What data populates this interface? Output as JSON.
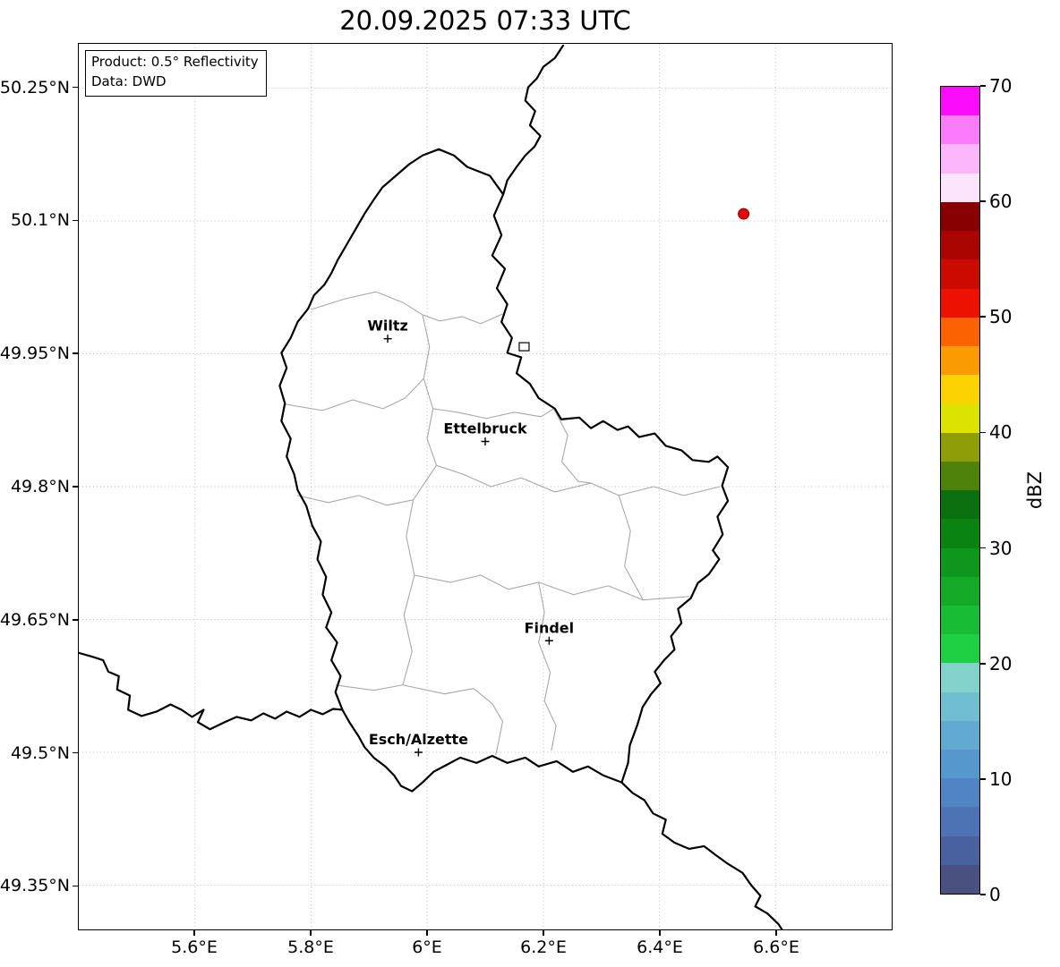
{
  "title": "20.09.2025 07:33 UTC",
  "info_box": {
    "product": "Product: 0.5° Reflectivity",
    "data_source": "Data: DWD"
  },
  "map": {
    "lon_min": 5.4,
    "lon_max": 6.8,
    "lat_min": 49.3,
    "lat_max": 50.3,
    "grid_color": "#bdbdbd",
    "x_ticks": [
      {
        "value": 5.6,
        "label": "5.6°E"
      },
      {
        "value": 5.8,
        "label": "5.8°E"
      },
      {
        "value": 6.0,
        "label": "6°E"
      },
      {
        "value": 6.2,
        "label": "6.2°E"
      },
      {
        "value": 6.4,
        "label": "6.4°E"
      },
      {
        "value": 6.6,
        "label": "6.6°E"
      }
    ],
    "y_ticks": [
      {
        "value": 50.25,
        "label": "50.25°N"
      },
      {
        "value": 50.1,
        "label": "50.1°N"
      },
      {
        "value": 49.95,
        "label": "49.95°N"
      },
      {
        "value": 49.8,
        "label": "49.8°N"
      },
      {
        "value": 49.65,
        "label": "49.65°N"
      },
      {
        "value": 49.5,
        "label": "49.5°N"
      },
      {
        "value": 49.35,
        "label": "49.35°N"
      }
    ],
    "cities": [
      {
        "name": "Wiltz",
        "lon": 5.932,
        "lat": 49.967
      },
      {
        "name": "Ettelbruck",
        "lon": 6.1,
        "lat": 49.851
      },
      {
        "name": "Findel",
        "lon": 6.21,
        "lat": 49.626
      },
      {
        "name": "Esch/Alzette",
        "lon": 5.985,
        "lat": 49.5
      }
    ],
    "echo_marker": {
      "lon": 6.545,
      "lat": 50.108,
      "color": "#e8000b",
      "edge_color": "#8b0000"
    },
    "reservoir_marker": {
      "lon": 6.167,
      "lat": 49.958
    },
    "borders": {
      "country_color": "#000000",
      "internal_color": "#a8a8a8",
      "country": [
        [
          [
            6.02,
            50.181
          ],
          [
            6.046,
            50.174
          ],
          [
            6.069,
            50.161
          ],
          [
            6.108,
            50.151
          ],
          [
            6.131,
            50.13
          ],
          [
            6.115,
            50.106
          ],
          [
            6.128,
            50.084
          ],
          [
            6.112,
            50.061
          ],
          [
            6.134,
            50.046
          ],
          [
            6.12,
            50.024
          ],
          [
            6.138,
            50.006
          ],
          [
            6.128,
            49.986
          ],
          [
            6.146,
            49.968
          ],
          [
            6.138,
            49.951
          ],
          [
            6.162,
            49.946
          ],
          [
            6.154,
            49.928
          ],
          [
            6.177,
            49.916
          ],
          [
            6.192,
            49.9
          ],
          [
            6.22,
            49.888
          ],
          [
            6.231,
            49.876
          ],
          [
            6.262,
            49.878
          ],
          [
            6.282,
            49.866
          ],
          [
            6.303,
            49.874
          ],
          [
            6.328,
            49.864
          ],
          [
            6.346,
            49.868
          ],
          [
            6.365,
            49.856
          ],
          [
            6.392,
            49.86
          ],
          [
            6.411,
            49.846
          ],
          [
            6.438,
            49.841
          ],
          [
            6.457,
            49.83
          ],
          [
            6.485,
            49.828
          ],
          [
            6.5,
            49.834
          ],
          [
            6.518,
            49.822
          ],
          [
            6.508,
            49.801
          ],
          [
            6.518,
            49.784
          ],
          [
            6.5,
            49.766
          ],
          [
            6.509,
            49.746
          ],
          [
            6.492,
            49.728
          ],
          [
            6.503,
            49.718
          ],
          [
            6.485,
            49.701
          ],
          [
            6.466,
            49.691
          ],
          [
            6.454,
            49.674
          ],
          [
            6.432,
            49.662
          ],
          [
            6.438,
            49.646
          ],
          [
            6.42,
            49.631
          ],
          [
            6.426,
            49.616
          ],
          [
            6.408,
            49.604
          ],
          [
            6.392,
            49.591
          ],
          [
            6.402,
            49.578
          ],
          [
            6.386,
            49.566
          ],
          [
            6.371,
            49.551
          ],
          [
            6.362,
            49.531
          ],
          [
            6.349,
            49.508
          ],
          [
            6.346,
            49.488
          ],
          [
            6.335,
            49.466
          ],
          [
            6.303,
            49.474
          ],
          [
            6.277,
            49.484
          ],
          [
            6.251,
            49.478
          ],
          [
            6.223,
            49.49
          ],
          [
            6.192,
            49.484
          ],
          [
            6.169,
            49.494
          ],
          [
            6.138,
            49.488
          ],
          [
            6.112,
            49.496
          ],
          [
            6.085,
            49.488
          ],
          [
            6.057,
            49.494
          ],
          [
            6.034,
            49.486
          ],
          [
            6.011,
            49.478
          ],
          [
            5.992,
            49.466
          ],
          [
            5.974,
            49.456
          ],
          [
            5.955,
            49.462
          ],
          [
            5.943,
            49.474
          ],
          [
            5.928,
            49.484
          ],
          [
            5.908,
            49.494
          ],
          [
            5.892,
            49.506
          ],
          [
            5.882,
            49.518
          ],
          [
            5.866,
            49.534
          ],
          [
            5.854,
            49.548
          ],
          [
            5.842,
            49.568
          ],
          [
            5.851,
            49.586
          ],
          [
            5.835,
            49.604
          ],
          [
            5.845,
            49.624
          ],
          [
            5.826,
            49.641
          ],
          [
            5.835,
            49.658
          ],
          [
            5.82,
            49.678
          ],
          [
            5.826,
            49.698
          ],
          [
            5.811,
            49.718
          ],
          [
            5.817,
            49.738
          ],
          [
            5.802,
            49.756
          ],
          [
            5.792,
            49.778
          ],
          [
            5.777,
            49.796
          ],
          [
            5.771,
            49.814
          ],
          [
            5.758,
            49.834
          ],
          [
            5.765,
            49.854
          ],
          [
            5.749,
            49.874
          ],
          [
            5.755,
            49.894
          ],
          [
            5.746,
            49.914
          ],
          [
            5.758,
            49.934
          ],
          [
            5.749,
            49.951
          ],
          [
            5.765,
            49.968
          ],
          [
            5.777,
            49.986
          ],
          [
            5.795,
            50.001
          ],
          [
            5.805,
            50.016
          ],
          [
            5.823,
            50.028
          ],
          [
            5.835,
            50.041
          ],
          [
            5.846,
            50.056
          ],
          [
            5.862,
            50.074
          ],
          [
            5.877,
            50.091
          ],
          [
            5.892,
            50.108
          ],
          [
            5.908,
            50.124
          ],
          [
            5.923,
            50.138
          ],
          [
            5.946,
            50.151
          ],
          [
            5.969,
            50.164
          ],
          [
            5.992,
            50.174
          ],
          [
            6.02,
            50.181
          ]
        ],
        [
          [
            6.234,
            50.298
          ],
          [
            6.22,
            50.284
          ],
          [
            6.2,
            50.274
          ],
          [
            6.189,
            50.261
          ],
          [
            6.174,
            50.251
          ],
          [
            6.169,
            50.236
          ],
          [
            6.186,
            50.224
          ],
          [
            6.177,
            50.208
          ],
          [
            6.195,
            50.196
          ],
          [
            6.185,
            50.184
          ],
          [
            6.169,
            50.174
          ],
          [
            6.154,
            50.161
          ],
          [
            6.138,
            50.146
          ],
          [
            6.131,
            50.13
          ]
        ],
        [
          [
            6.335,
            49.466
          ],
          [
            6.354,
            49.454
          ],
          [
            6.374,
            49.446
          ],
          [
            6.389,
            49.431
          ],
          [
            6.411,
            49.424
          ],
          [
            6.405,
            49.408
          ],
          [
            6.426,
            49.398
          ],
          [
            6.451,
            49.391
          ],
          [
            6.477,
            49.394
          ],
          [
            6.497,
            49.384
          ],
          [
            6.518,
            49.374
          ],
          [
            6.543,
            49.364
          ],
          [
            6.558,
            49.35
          ],
          [
            6.574,
            49.338
          ],
          [
            6.565,
            49.326
          ],
          [
            6.586,
            49.318
          ],
          [
            6.605,
            49.306
          ],
          [
            6.615,
            49.296
          ]
        ],
        [
          [
            5.396,
            49.613
          ],
          [
            5.423,
            49.608
          ],
          [
            5.442,
            49.604
          ],
          [
            5.451,
            49.591
          ],
          [
            5.469,
            49.586
          ],
          [
            5.466,
            49.571
          ],
          [
            5.488,
            49.564
          ],
          [
            5.485,
            49.548
          ],
          [
            5.508,
            49.541
          ],
          [
            5.534,
            49.546
          ],
          [
            5.558,
            49.554
          ],
          [
            5.577,
            49.548
          ],
          [
            5.595,
            49.54
          ],
          [
            5.615,
            49.548
          ],
          [
            5.605,
            49.534
          ],
          [
            5.626,
            49.526
          ],
          [
            5.651,
            49.534
          ],
          [
            5.672,
            49.54
          ],
          [
            5.697,
            49.536
          ],
          [
            5.718,
            49.544
          ],
          [
            5.738,
            49.538
          ],
          [
            5.758,
            49.546
          ],
          [
            5.78,
            49.54
          ],
          [
            5.8,
            49.548
          ],
          [
            5.82,
            49.543
          ],
          [
            5.838,
            49.549
          ],
          [
            5.854,
            49.548
          ]
        ]
      ],
      "internal": [
        [
          [
            5.8,
            50.0
          ],
          [
            5.858,
            50.012
          ],
          [
            5.912,
            50.02
          ],
          [
            5.958,
            50.008
          ],
          [
            5.992,
            49.994
          ],
          [
            6.022,
            49.987
          ],
          [
            6.06,
            49.992
          ],
          [
            6.092,
            49.984
          ],
          [
            6.13,
            49.995
          ]
        ],
        [
          [
            5.992,
            49.994
          ],
          [
            6.004,
            49.958
          ],
          [
            5.994,
            49.922
          ],
          [
            6.01,
            49.888
          ],
          [
            6.0,
            49.854
          ],
          [
            6.016,
            49.824
          ]
        ],
        [
          [
            5.756,
            49.893
          ],
          [
            5.82,
            49.886
          ],
          [
            5.872,
            49.898
          ],
          [
            5.924,
            49.888
          ],
          [
            5.962,
            49.9
          ],
          [
            5.994,
            49.922
          ]
        ],
        [
          [
            6.01,
            49.888
          ],
          [
            6.052,
            49.884
          ],
          [
            6.102,
            49.877
          ],
          [
            6.15,
            49.884
          ],
          [
            6.196,
            49.879
          ],
          [
            6.218,
            49.888
          ]
        ],
        [
          [
            6.016,
            49.824
          ],
          [
            6.062,
            49.814
          ],
          [
            6.11,
            49.8
          ],
          [
            6.162,
            49.81
          ],
          [
            6.22,
            49.794
          ],
          [
            6.282,
            49.804
          ],
          [
            6.33,
            49.79
          ],
          [
            6.39,
            49.8
          ],
          [
            6.442,
            49.79
          ],
          [
            6.504,
            49.8
          ]
        ],
        [
          [
            5.776,
            49.79
          ],
          [
            5.83,
            49.782
          ],
          [
            5.882,
            49.79
          ],
          [
            5.93,
            49.779
          ],
          [
            5.976,
            49.785
          ],
          [
            6.016,
            49.824
          ]
        ],
        [
          [
            5.976,
            49.785
          ],
          [
            5.964,
            49.744
          ],
          [
            5.978,
            49.7
          ],
          [
            5.96,
            49.655
          ],
          [
            5.974,
            49.614
          ],
          [
            5.958,
            49.576
          ]
        ],
        [
          [
            5.842,
            49.576
          ],
          [
            5.908,
            49.57
          ],
          [
            5.958,
            49.576
          ],
          [
            6.03,
            49.566
          ],
          [
            6.08,
            49.572
          ],
          [
            6.112,
            49.555
          ],
          [
            6.13,
            49.535
          ],
          [
            6.124,
            49.515
          ],
          [
            6.118,
            49.497
          ]
        ],
        [
          [
            5.978,
            49.7
          ],
          [
            6.04,
            49.692
          ],
          [
            6.092,
            49.7
          ],
          [
            6.14,
            49.684
          ],
          [
            6.192,
            49.692
          ],
          [
            6.252,
            49.678
          ],
          [
            6.312,
            49.688
          ],
          [
            6.372,
            49.672
          ],
          [
            6.452,
            49.676
          ]
        ],
        [
          [
            6.192,
            49.692
          ],
          [
            6.202,
            49.658
          ],
          [
            6.192,
            49.624
          ],
          [
            6.212,
            49.59
          ],
          [
            6.202,
            49.558
          ],
          [
            6.222,
            49.53
          ],
          [
            6.214,
            49.502
          ]
        ],
        [
          [
            6.218,
            49.888
          ],
          [
            6.242,
            49.858
          ],
          [
            6.232,
            49.828
          ],
          [
            6.26,
            49.806
          ],
          [
            6.282,
            49.804
          ]
        ],
        [
          [
            6.33,
            49.79
          ],
          [
            6.35,
            49.75
          ],
          [
            6.34,
            49.71
          ],
          [
            6.372,
            49.672
          ]
        ]
      ]
    }
  },
  "colorbar": {
    "label": "dBZ",
    "min": 0,
    "max": 70,
    "ticks": [
      {
        "value": 70,
        "label": "70"
      },
      {
        "value": 60,
        "label": "60"
      },
      {
        "value": 50,
        "label": "50"
      },
      {
        "value": 40,
        "label": "40"
      },
      {
        "value": 30,
        "label": "30"
      },
      {
        "value": 20,
        "label": "20"
      },
      {
        "value": 10,
        "label": "10"
      },
      {
        "value": 0,
        "label": "0"
      }
    ],
    "colors_bottom_to_top": [
      "#48517f",
      "#4a61a0",
      "#4d73b4",
      "#5184c3",
      "#5697cc",
      "#62aad0",
      "#71bed1",
      "#82d2cb",
      "#1ed143",
      "#19bd35",
      "#14aa28",
      "#0f961c",
      "#0b8312",
      "#0a7010",
      "#4f820a",
      "#8f9d06",
      "#dce303",
      "#fbd202",
      "#fb9b02",
      "#fb6302",
      "#ed1101",
      "#cb0b01",
      "#a90601",
      "#870101",
      "#fce4fb",
      "#fbb5fa",
      "#fb7cfa",
      "#fb0dfb"
    ]
  }
}
